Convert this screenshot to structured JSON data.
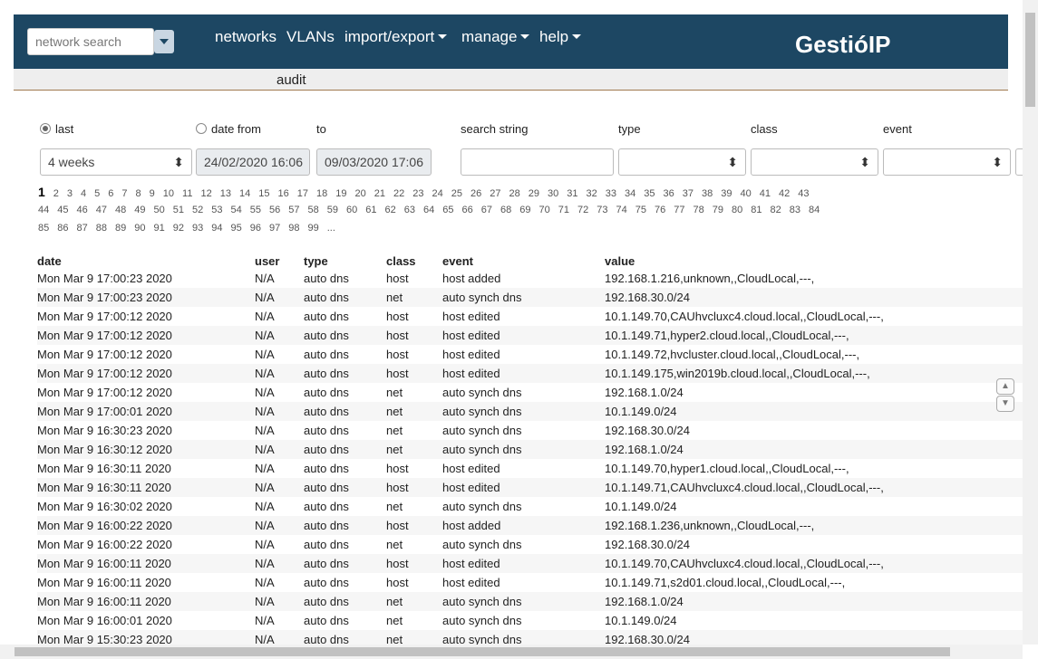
{
  "header": {
    "search_placeholder": "network search",
    "nav": [
      "networks",
      "VLANs",
      "import/export",
      "manage",
      "help"
    ],
    "brand": "GestióIP"
  },
  "subheader": {
    "title": "audit"
  },
  "filters": {
    "last_label": "last",
    "date_from_label": "date from",
    "to_label": "to",
    "search_label": "search string",
    "type_label": "type",
    "class_label": "class",
    "event_label": "event",
    "last_value": "4 weeks",
    "date_from": "24/02/2020 16:06",
    "date_to": "09/03/2020 17:06"
  },
  "pages": [
    1,
    2,
    3,
    4,
    5,
    6,
    7,
    8,
    9,
    10,
    11,
    12,
    13,
    14,
    15,
    16,
    17,
    18,
    19,
    20,
    21,
    22,
    23,
    24,
    25,
    26,
    27,
    28,
    29,
    30,
    31,
    32,
    33,
    34,
    35,
    36,
    37,
    38,
    39,
    40,
    41,
    42,
    43,
    44,
    45,
    46,
    47,
    48,
    49,
    50,
    51,
    52,
    53,
    54,
    55,
    56,
    57,
    58,
    59,
    60,
    61,
    62,
    63,
    64,
    65,
    66,
    67,
    68,
    69,
    70,
    71,
    72,
    73,
    74,
    75,
    76,
    77,
    78,
    79,
    80,
    81,
    82,
    83,
    84,
    85,
    86,
    87,
    88,
    89,
    90,
    91,
    92,
    93,
    94,
    95,
    96,
    97,
    98,
    99,
    "..."
  ],
  "table": {
    "columns": [
      "date",
      "user",
      "type",
      "class",
      "event",
      "value"
    ],
    "rows": [
      [
        "Mon Mar 9 17:00:23 2020",
        "N/A",
        "auto dns",
        "host",
        "host added",
        "192.168.1.216,unknown,,CloudLocal,---,"
      ],
      [
        "Mon Mar 9 17:00:23 2020",
        "N/A",
        "auto dns",
        "net",
        "auto synch dns",
        "192.168.30.0/24"
      ],
      [
        "Mon Mar 9 17:00:12 2020",
        "N/A",
        "auto dns",
        "host",
        "host edited",
        "10.1.149.70,CAUhvcluxc4.cloud.local,,CloudLocal,---,"
      ],
      [
        "Mon Mar 9 17:00:12 2020",
        "N/A",
        "auto dns",
        "host",
        "host edited",
        "10.1.149.71,hyper2.cloud.local,,CloudLocal,---,"
      ],
      [
        "Mon Mar 9 17:00:12 2020",
        "N/A",
        "auto dns",
        "host",
        "host edited",
        "10.1.149.72,hvcluster.cloud.local,,CloudLocal,---,"
      ],
      [
        "Mon Mar 9 17:00:12 2020",
        "N/A",
        "auto dns",
        "host",
        "host edited",
        "10.1.149.175,win2019b.cloud.local,,CloudLocal,---,"
      ],
      [
        "Mon Mar 9 17:00:12 2020",
        "N/A",
        "auto dns",
        "net",
        "auto synch dns",
        "192.168.1.0/24"
      ],
      [
        "Mon Mar 9 17:00:01 2020",
        "N/A",
        "auto dns",
        "net",
        "auto synch dns",
        "10.1.149.0/24"
      ],
      [
        "Mon Mar 9 16:30:23 2020",
        "N/A",
        "auto dns",
        "net",
        "auto synch dns",
        "192.168.30.0/24"
      ],
      [
        "Mon Mar 9 16:30:12 2020",
        "N/A",
        "auto dns",
        "net",
        "auto synch dns",
        "192.168.1.0/24"
      ],
      [
        "Mon Mar 9 16:30:11 2020",
        "N/A",
        "auto dns",
        "host",
        "host edited",
        "10.1.149.70,hyper1.cloud.local,,CloudLocal,---,"
      ],
      [
        "Mon Mar 9 16:30:11 2020",
        "N/A",
        "auto dns",
        "host",
        "host edited",
        "10.1.149.71,CAUhvcluxc4.cloud.local,,CloudLocal,---,"
      ],
      [
        "Mon Mar 9 16:30:02 2020",
        "N/A",
        "auto dns",
        "net",
        "auto synch dns",
        "10.1.149.0/24"
      ],
      [
        "Mon Mar 9 16:00:22 2020",
        "N/A",
        "auto dns",
        "host",
        "host added",
        "192.168.1.236,unknown,,CloudLocal,---,"
      ],
      [
        "Mon Mar 9 16:00:22 2020",
        "N/A",
        "auto dns",
        "net",
        "auto synch dns",
        "192.168.30.0/24"
      ],
      [
        "Mon Mar 9 16:00:11 2020",
        "N/A",
        "auto dns",
        "host",
        "host edited",
        "10.1.149.70,CAUhvcluxc4.cloud.local,,CloudLocal,---,"
      ],
      [
        "Mon Mar 9 16:00:11 2020",
        "N/A",
        "auto dns",
        "host",
        "host edited",
        "10.1.149.71,s2d01.cloud.local,,CloudLocal,---,"
      ],
      [
        "Mon Mar 9 16:00:11 2020",
        "N/A",
        "auto dns",
        "net",
        "auto synch dns",
        "192.168.1.0/24"
      ],
      [
        "Mon Mar 9 16:00:01 2020",
        "N/A",
        "auto dns",
        "net",
        "auto synch dns",
        "10.1.149.0/24"
      ],
      [
        "Mon Mar 9 15:30:23 2020",
        "N/A",
        "auto dns",
        "net",
        "auto synch dns",
        "192.168.30.0/24"
      ]
    ]
  }
}
